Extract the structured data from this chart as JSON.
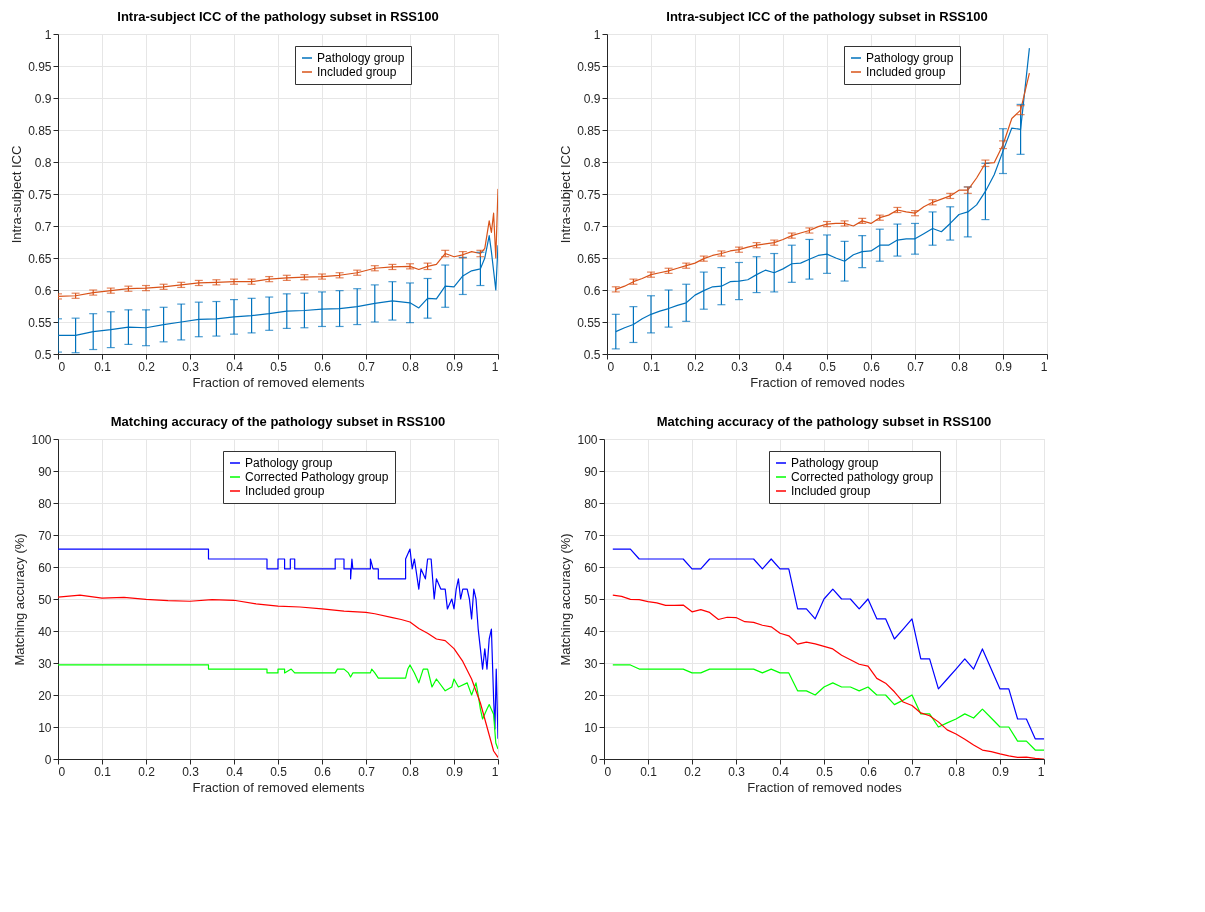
{
  "chart_data": [
    {
      "type": "line",
      "title": "Intra-subject ICC of the pathology subset in RSS100",
      "xlabel": "Fraction of removed elements",
      "ylabel": "Intra-subject ICC",
      "xlim": [
        0,
        1
      ],
      "ylim": [
        0.5,
        1
      ],
      "xticks": [
        0,
        0.1,
        0.2,
        0.3,
        0.4,
        0.5,
        0.6,
        0.7,
        0.8,
        0.9,
        1
      ],
      "yticks": [
        0.5,
        0.55,
        0.6,
        0.65,
        0.7,
        0.75,
        0.8,
        0.85,
        0.9,
        0.95,
        1
      ],
      "grid": true,
      "legend": "top right",
      "x": [
        0,
        0.04,
        0.08,
        0.12,
        0.16,
        0.2,
        0.24,
        0.28,
        0.32,
        0.36,
        0.4,
        0.44,
        0.48,
        0.52,
        0.56,
        0.6,
        0.64,
        0.68,
        0.72,
        0.76,
        0.8,
        0.82,
        0.84,
        0.86,
        0.88,
        0.9,
        0.92,
        0.94,
        0.96,
        0.97,
        0.98,
        0.985,
        0.99,
        0.995,
        1
      ],
      "series": [
        {
          "name": "Pathology group",
          "color": "#0072bd",
          "values": [
            0.529,
            0.529,
            0.535,
            0.538,
            0.542,
            0.541,
            0.546,
            0.55,
            0.554,
            0.555,
            0.558,
            0.56,
            0.563,
            0.567,
            0.568,
            0.57,
            0.571,
            0.574,
            0.579,
            0.583,
            0.58,
            0.572,
            0.587,
            0.586,
            0.606,
            0.605,
            0.622,
            0.63,
            0.633,
            0.65,
            0.685,
            0.66,
            0.63,
            0.6,
            0.67
          ],
          "errors": [
            0.026,
            0.027,
            0.028,
            0.028,
            0.027,
            0.028,
            0.027,
            0.028,
            0.027,
            0.027,
            0.027,
            0.027,
            0.026,
            0.027,
            0.027,
            0.027,
            0.028,
            0.028,
            0.029,
            0.03,
            0.031,
            null,
            0.031,
            null,
            0.033,
            null,
            0.029,
            null,
            0.026,
            null,
            null,
            null,
            null,
            null,
            null
          ]
        },
        {
          "name": "Included group",
          "color": "#d95319",
          "values": [
            0.59,
            0.591,
            0.596,
            0.599,
            0.602,
            0.603,
            0.605,
            0.608,
            0.611,
            0.612,
            0.613,
            0.613,
            0.617,
            0.619,
            0.62,
            0.621,
            0.623,
            0.627,
            0.634,
            0.636,
            0.637,
            0.632,
            0.637,
            0.64,
            0.657,
            0.652,
            0.655,
            0.66,
            0.657,
            0.665,
            0.708,
            0.69,
            0.72,
            0.65,
            0.758
          ],
          "errors": [
            0.004,
            0.004,
            0.004,
            0.004,
            0.004,
            0.004,
            0.004,
            0.004,
            0.004,
            0.004,
            0.004,
            0.004,
            0.004,
            0.004,
            0.004,
            0.004,
            0.004,
            0.004,
            0.004,
            0.004,
            0.004,
            null,
            0.005,
            null,
            0.005,
            null,
            0.005,
            null,
            0.005,
            null,
            null,
            null,
            null,
            null,
            null
          ]
        }
      ]
    },
    {
      "type": "line",
      "title": "Intra-subject ICC of the pathology subset in RSS100",
      "xlabel": "Fraction of removed nodes",
      "ylabel": "Intra-subject ICC",
      "xlim": [
        0,
        1
      ],
      "ylim": [
        0.5,
        1
      ],
      "xticks": [
        0,
        0.1,
        0.2,
        0.3,
        0.4,
        0.5,
        0.6,
        0.7,
        0.8,
        0.9,
        1
      ],
      "yticks": [
        0.5,
        0.55,
        0.6,
        0.65,
        0.7,
        0.75,
        0.8,
        0.85,
        0.9,
        0.95,
        1
      ],
      "grid": true,
      "legend": "top right",
      "x": [
        0.02,
        0.04,
        0.06,
        0.08,
        0.1,
        0.12,
        0.14,
        0.16,
        0.18,
        0.2,
        0.22,
        0.24,
        0.26,
        0.28,
        0.3,
        0.32,
        0.34,
        0.36,
        0.38,
        0.4,
        0.42,
        0.44,
        0.46,
        0.48,
        0.5,
        0.52,
        0.54,
        0.56,
        0.58,
        0.6,
        0.62,
        0.64,
        0.66,
        0.68,
        0.7,
        0.72,
        0.74,
        0.76,
        0.78,
        0.8,
        0.82,
        0.84,
        0.86,
        0.88,
        0.9,
        0.92,
        0.94,
        0.96
      ],
      "series": [
        {
          "name": "Pathology group",
          "color": "#0072bd",
          "values": [
            0.535,
            0.541,
            0.546,
            0.555,
            0.562,
            0.567,
            0.571,
            0.576,
            0.58,
            0.592,
            0.599,
            0.605,
            0.606,
            0.613,
            0.614,
            0.616,
            0.624,
            0.631,
            0.627,
            0.633,
            0.641,
            0.642,
            0.648,
            0.654,
            0.656,
            0.65,
            0.645,
            0.655,
            0.66,
            0.661,
            0.67,
            0.67,
            0.678,
            0.68,
            0.68,
            0.688,
            0.696,
            0.691,
            0.704,
            0.718,
            0.722,
            0.733,
            0.754,
            0.78,
            0.817,
            0.853,
            0.851,
            0.978
          ],
          "errors": [
            0.027,
            null,
            0.028,
            null,
            0.029,
            null,
            0.029,
            null,
            0.029,
            null,
            0.029,
            null,
            0.029,
            null,
            0.029,
            null,
            0.028,
            null,
            0.03,
            null,
            0.029,
            null,
            0.031,
            null,
            0.03,
            null,
            0.031,
            null,
            0.025,
            null,
            0.025,
            null,
            0.025,
            null,
            0.024,
            null,
            0.026,
            null,
            0.026,
            null,
            0.039,
            null,
            0.044,
            null,
            0.035,
            null,
            0.039,
            null
          ]
        },
        {
          "name": "Included group",
          "color": "#d95319",
          "values": [
            0.601,
            0.606,
            0.613,
            0.618,
            0.624,
            0.627,
            0.63,
            0.634,
            0.638,
            0.642,
            0.649,
            0.654,
            0.657,
            0.661,
            0.663,
            0.667,
            0.67,
            0.672,
            0.674,
            0.679,
            0.685,
            0.689,
            0.693,
            0.699,
            0.703,
            0.704,
            0.704,
            0.7,
            0.708,
            0.704,
            0.713,
            0.717,
            0.725,
            0.722,
            0.72,
            0.73,
            0.737,
            0.742,
            0.747,
            0.756,
            0.756,
            0.775,
            0.798,
            0.799,
            0.827,
            0.868,
            0.881,
            0.939
          ],
          "errors": [
            0.004,
            null,
            0.004,
            null,
            0.004,
            null,
            0.004,
            null,
            0.004,
            null,
            0.004,
            null,
            0.004,
            null,
            0.004,
            null,
            0.004,
            null,
            0.004,
            null,
            0.004,
            null,
            0.004,
            null,
            0.004,
            null,
            0.004,
            null,
            0.004,
            null,
            0.004,
            null,
            0.004,
            null,
            0.004,
            null,
            0.004,
            null,
            0.004,
            null,
            0.005,
            null,
            0.005,
            null,
            0.006,
            null,
            0.007,
            null
          ]
        }
      ]
    },
    {
      "type": "line",
      "title": "Matching accuracy of the pathology subset in RSS100",
      "xlabel": "Fraction of removed elements",
      "ylabel": "Matching accuracy (%)",
      "xlim": [
        0,
        1
      ],
      "ylim": [
        0,
        100
      ],
      "xticks": [
        0,
        0.1,
        0.2,
        0.3,
        0.4,
        0.5,
        0.6,
        0.7,
        0.8,
        0.9,
        1
      ],
      "yticks": [
        0,
        10,
        20,
        30,
        40,
        50,
        60,
        70,
        80,
        90,
        100
      ],
      "grid": true,
      "legend": "top right",
      "series": [
        {
          "name": "Pathology group",
          "color": "#0000ff",
          "x": [
            0,
            0.342,
            0.342,
            0.475,
            0.475,
            0.5,
            0.5,
            0.515,
            0.515,
            0.528,
            0.528,
            0.538,
            0.538,
            0.63,
            0.63,
            0.65,
            0.65,
            0.665,
            0.665,
            0.668,
            0.67,
            0.71,
            0.71,
            0.716,
            0.728,
            0.728,
            0.79,
            0.79,
            0.8,
            0.805,
            0.81,
            0.82,
            0.825,
            0.835,
            0.84,
            0.848,
            0.855,
            0.86,
            0.87,
            0.88,
            0.885,
            0.895,
            0.9,
            0.905,
            0.91,
            0.915,
            0.92,
            0.93,
            0.935,
            0.94,
            0.945,
            0.95,
            0.955,
            0.96,
            0.965,
            0.97,
            0.975,
            0.98,
            0.985,
            0.99,
            0.993,
            0.996,
            1
          ],
          "values": [
            65.6,
            65.6,
            62.5,
            62.5,
            59.4,
            59.4,
            62.5,
            62.5,
            59.4,
            59.4,
            62.5,
            62.5,
            59.4,
            59.4,
            62.5,
            62.5,
            59.4,
            59.4,
            56.3,
            62.5,
            59.4,
            59.4,
            62.5,
            59.4,
            59.4,
            56.3,
            56.3,
            62.5,
            65.6,
            59.4,
            62.5,
            53.1,
            59.4,
            56.3,
            62.5,
            62.5,
            50,
            56.3,
            53.1,
            53.1,
            46.9,
            50,
            46.9,
            53.1,
            56.3,
            50,
            53.1,
            53.1,
            50,
            43.8,
            53.1,
            50,
            40.6,
            34.4,
            28.1,
            34.4,
            28.1,
            37.5,
            40.6,
            18.8,
            9.4,
            28.1,
            6.3
          ]
        },
        {
          "name": "Corrected Pathology group",
          "color": "#00ff00",
          "x": [
            0,
            0.342,
            0.342,
            0.475,
            0.475,
            0.5,
            0.5,
            0.515,
            0.515,
            0.53,
            0.538,
            0.63,
            0.635,
            0.65,
            0.66,
            0.665,
            0.67,
            0.71,
            0.713,
            0.72,
            0.728,
            0.79,
            0.795,
            0.8,
            0.81,
            0.82,
            0.83,
            0.84,
            0.85,
            0.86,
            0.88,
            0.895,
            0.9,
            0.91,
            0.93,
            0.94,
            0.95,
            0.955,
            0.96,
            0.965,
            0.975,
            0.98,
            0.99,
            0.995,
            1
          ],
          "values": [
            29.4,
            29.4,
            28.1,
            28.1,
            26.9,
            26.9,
            28.1,
            28.1,
            26.9,
            28.1,
            26.9,
            26.9,
            28.1,
            28.1,
            26.9,
            25.6,
            26.9,
            26.9,
            28.1,
            26.9,
            25.3,
            25.3,
            28.1,
            29.4,
            26.9,
            23.8,
            28.1,
            28.1,
            22.5,
            25,
            21.3,
            22.5,
            25,
            22.5,
            23.8,
            20,
            23.8,
            20,
            15.6,
            12.5,
            15.6,
            17,
            14,
            5,
            3.1
          ]
        },
        {
          "name": "Included group",
          "color": "#ff0000",
          "x": [
            0,
            0.05,
            0.1,
            0.15,
            0.2,
            0.25,
            0.3,
            0.35,
            0.4,
            0.45,
            0.5,
            0.55,
            0.6,
            0.65,
            0.7,
            0.72,
            0.76,
            0.78,
            0.8,
            0.82,
            0.84,
            0.86,
            0.88,
            0.9,
            0.92,
            0.94,
            0.96,
            0.97,
            0.98,
            0.99,
            1
          ],
          "values": [
            50.6,
            51.2,
            50.3,
            50.5,
            49.9,
            49.5,
            49.3,
            49.8,
            49.6,
            48.5,
            47.8,
            47.5,
            46.9,
            46.2,
            45.8,
            45.4,
            44.2,
            43.6,
            42.8,
            40.8,
            39.3,
            37.5,
            37,
            34.5,
            30.5,
            25,
            17.5,
            12.5,
            7.5,
            2.5,
            0.5
          ]
        }
      ]
    },
    {
      "type": "line",
      "title": "Matching accuracy of the pathology subset in RSS100",
      "xlabel": "Fraction of removed nodes",
      "ylabel": "Matching accuracy (%)",
      "xlim": [
        0,
        1
      ],
      "ylim": [
        0,
        100
      ],
      "xticks": [
        0,
        0.1,
        0.2,
        0.3,
        0.4,
        0.5,
        0.6,
        0.7,
        0.8,
        0.9,
        1
      ],
      "yticks": [
        0,
        10,
        20,
        30,
        40,
        50,
        60,
        70,
        80,
        90,
        100
      ],
      "grid": true,
      "legend": "top right",
      "x": [
        0.02,
        0.04,
        0.06,
        0.08,
        0.1,
        0.12,
        0.14,
        0.16,
        0.18,
        0.2,
        0.22,
        0.24,
        0.26,
        0.28,
        0.3,
        0.32,
        0.34,
        0.36,
        0.38,
        0.4,
        0.42,
        0.44,
        0.46,
        0.48,
        0.5,
        0.52,
        0.54,
        0.56,
        0.58,
        0.6,
        0.62,
        0.64,
        0.66,
        0.68,
        0.7,
        0.72,
        0.74,
        0.76,
        0.78,
        0.8,
        0.82,
        0.84,
        0.86,
        0.88,
        0.9,
        0.92,
        0.94,
        0.96,
        0.98,
        1
      ],
      "series": [
        {
          "name": "Pathology group",
          "color": "#0000ff",
          "values": [
            65.6,
            65.6,
            65.6,
            62.5,
            62.5,
            62.5,
            62.5,
            62.5,
            62.5,
            59.4,
            59.4,
            62.5,
            62.5,
            62.5,
            62.5,
            62.5,
            62.5,
            59.4,
            62.5,
            59.4,
            59.4,
            46.9,
            46.9,
            43.8,
            50,
            53.1,
            50,
            50,
            46.9,
            50,
            43.8,
            43.8,
            37.5,
            40.6,
            43.8,
            31.3,
            31.3,
            21.9,
            25,
            28.1,
            31.3,
            28.1,
            34.4,
            28.1,
            21.9,
            21.9,
            12.5,
            12.5,
            6.3,
            6.3
          ]
        },
        {
          "name": "Corrected pathology group",
          "color": "#00ff00",
          "values": [
            29.4,
            29.4,
            29.4,
            28.1,
            28.1,
            28.1,
            28.1,
            28.1,
            28.1,
            26.9,
            26.9,
            28.1,
            28.1,
            28.1,
            28.1,
            28.1,
            28.1,
            26.9,
            28.1,
            26.9,
            26.9,
            21.3,
            21.3,
            20,
            22.5,
            23.8,
            22.5,
            22.5,
            21.3,
            22.5,
            20,
            20,
            17,
            18.4,
            20,
            14.1,
            14.1,
            10,
            11.3,
            12.5,
            14.1,
            12.8,
            15.6,
            12.8,
            10,
            10,
            5.6,
            5.6,
            2.8,
            2.8
          ]
        },
        {
          "name": "Included group",
          "color": "#ff0000",
          "values": [
            51.2,
            50.8,
            49.9,
            49.8,
            49.2,
            48.8,
            48,
            48,
            48.1,
            46,
            46.7,
            45.8,
            43.6,
            44.3,
            44.2,
            42.9,
            42.7,
            41.8,
            41.3,
            39.3,
            38.5,
            35.9,
            36.5,
            36,
            35.2,
            34.4,
            32.4,
            31,
            29.6,
            29,
            25.2,
            23.7,
            21,
            17.8,
            16.7,
            14.4,
            13.5,
            11.6,
            9.1,
            7.8,
            6.2,
            4.4,
            2.8,
            2.3,
            1.6,
            1,
            0.5,
            0.6,
            0.2,
            0
          ]
        }
      ]
    }
  ]
}
